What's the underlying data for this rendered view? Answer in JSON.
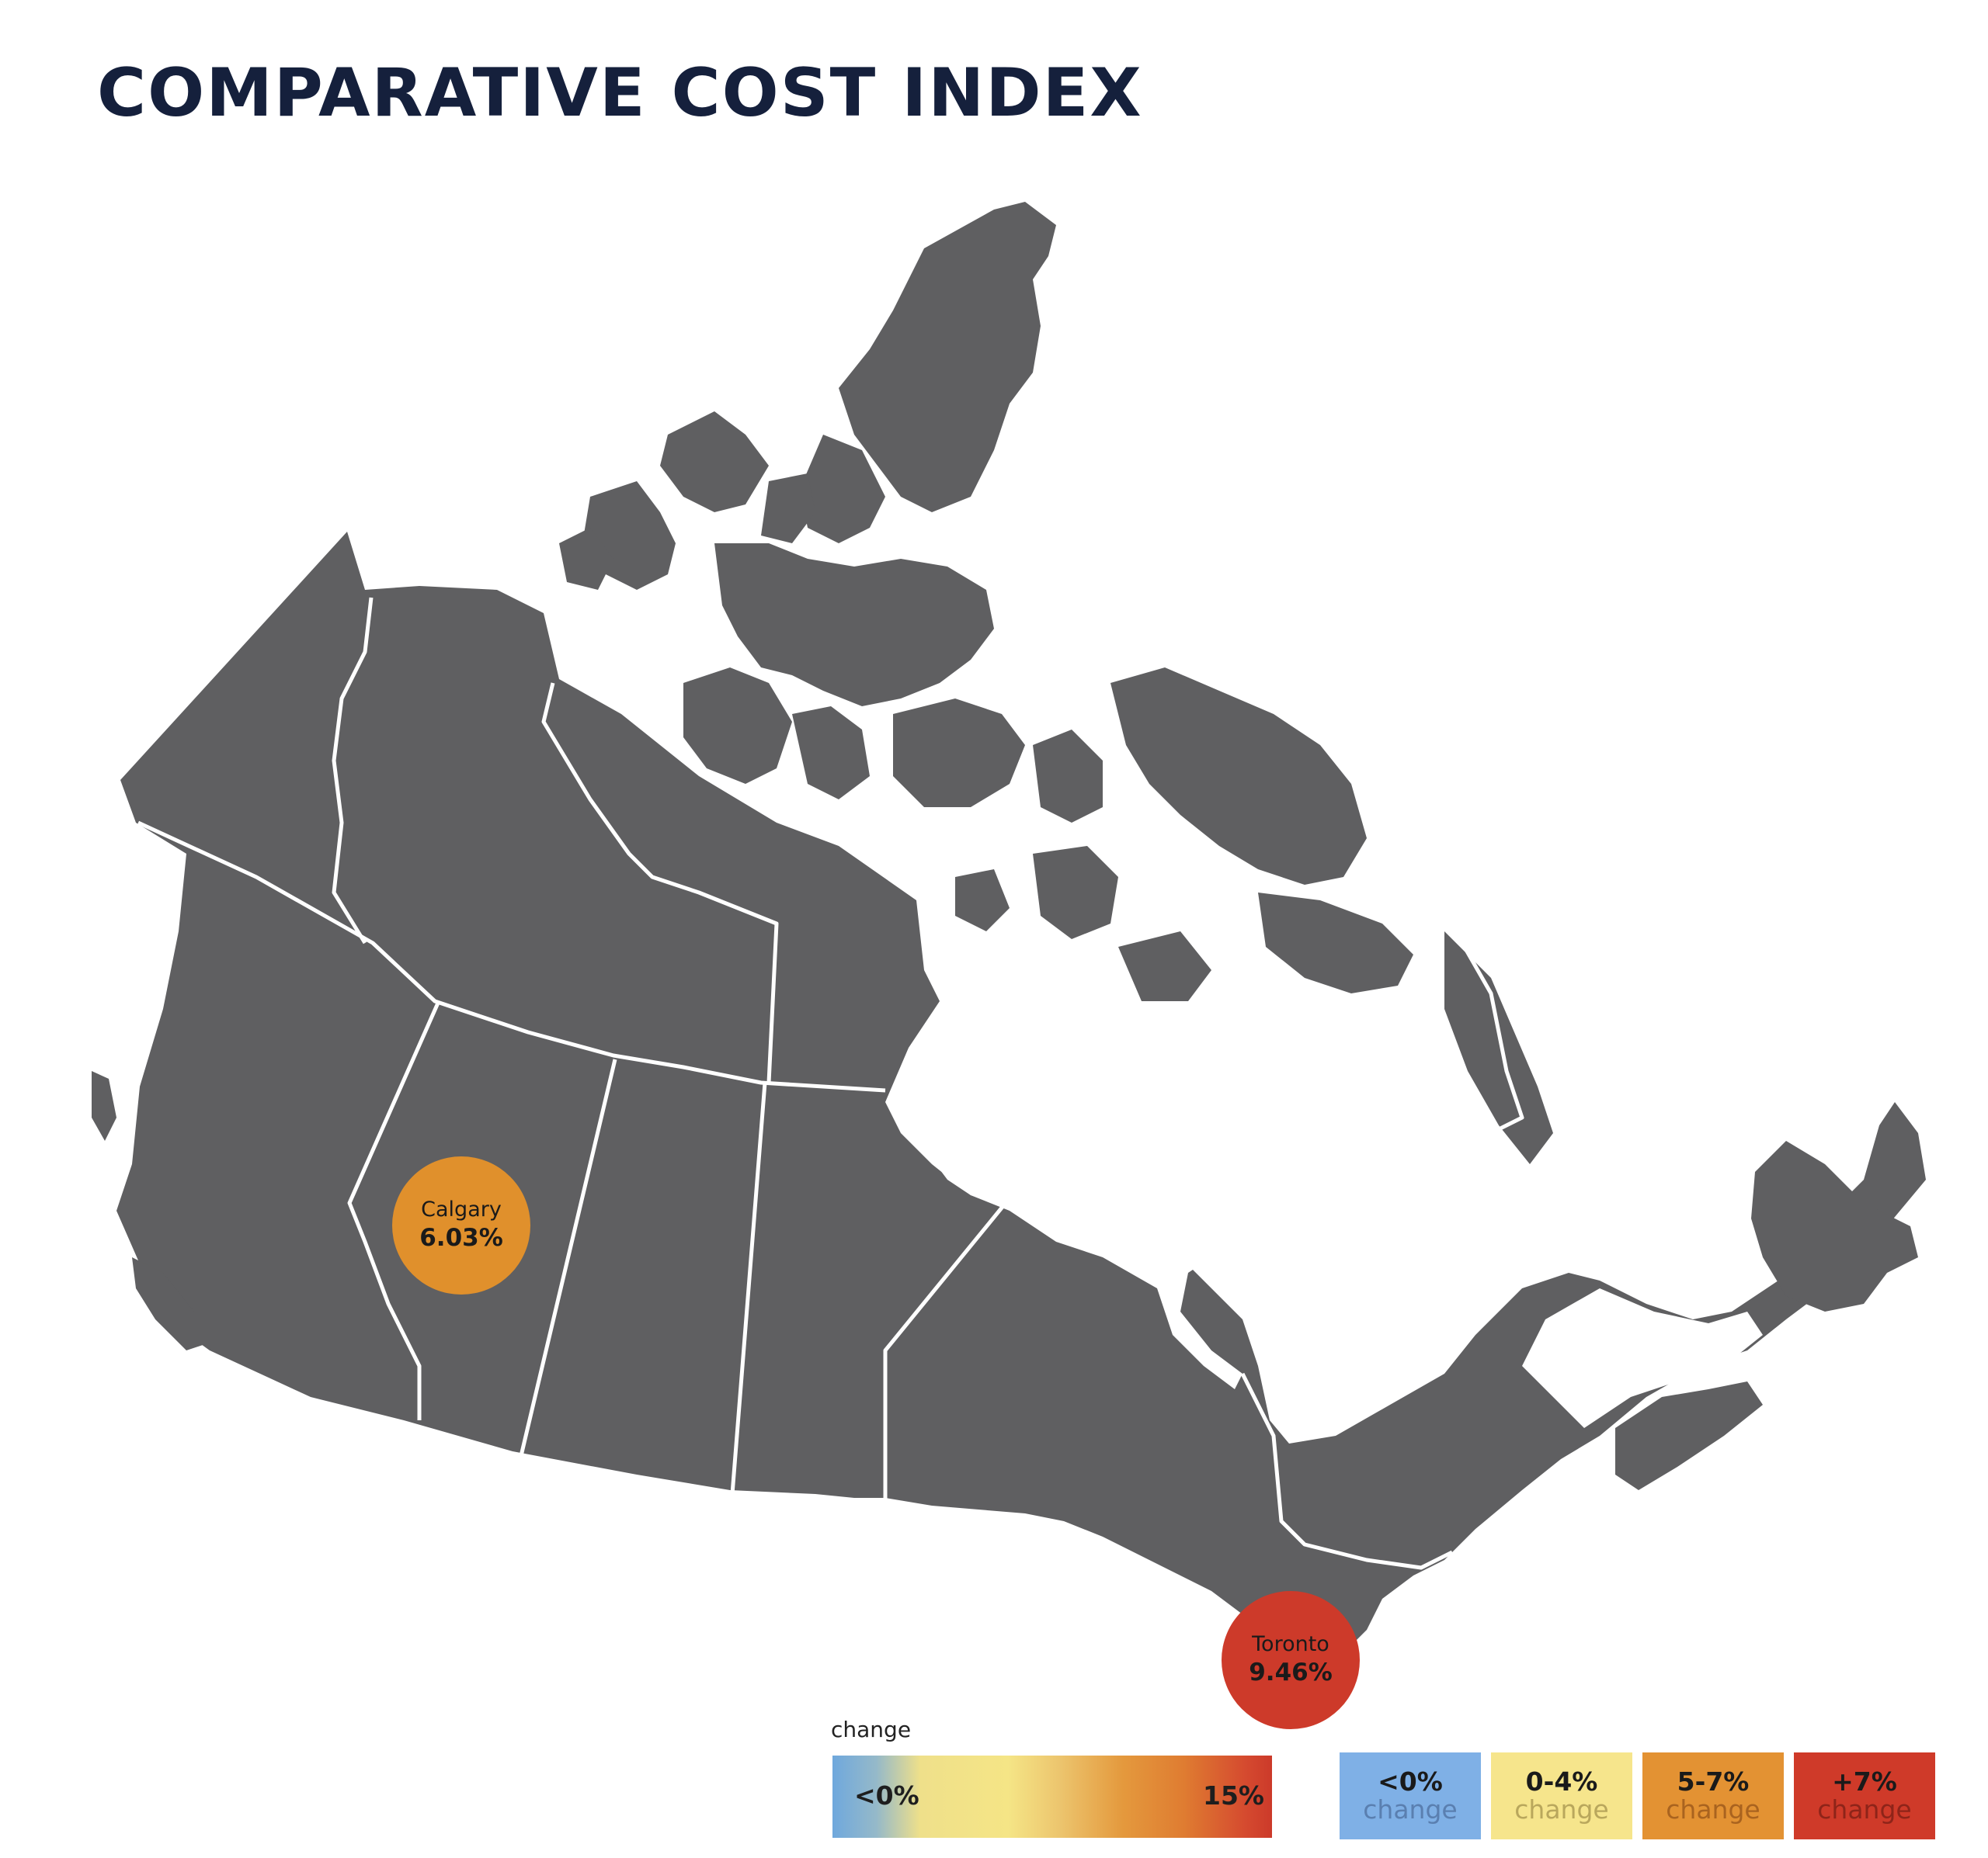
{
  "title": "COMPARATIVE COST INDEX",
  "colors": {
    "land": "#5f5f61",
    "border": "#ffffff",
    "calgary": "#e0902c",
    "toronto": "#cd3a2a"
  },
  "markers": [
    {
      "city": "Calgary",
      "value": "6.03%",
      "color": "#e0902c"
    },
    {
      "city": "Toronto",
      "value": "9.46%",
      "color": "#cd3a2a"
    }
  ],
  "legend": {
    "caption": "change",
    "gradient_low": "<0%",
    "gradient_high": "15%",
    "buckets": [
      {
        "range": "<0%",
        "word": "change",
        "color": "#7fb0e6",
        "word_color": "#5a7fb0"
      },
      {
        "range": "0-4%",
        "word": "change",
        "color": "#f6e58c",
        "word_color": "#b9a75c"
      },
      {
        "range": "5-7%",
        "word": "change",
        "color": "#e39233",
        "word_color": "#a9631f"
      },
      {
        "range": "+7%",
        "word": "change",
        "color": "#cf3a29",
        "word_color": "#8e2419"
      }
    ]
  }
}
